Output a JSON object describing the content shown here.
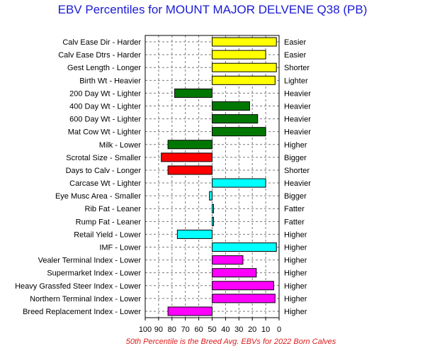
{
  "title": "EBV Percentiles for MOUNT MAJOR DELVENE Q38 (PB)",
  "footnote": "50th Percentile is the Breed Avg. EBVs for 2022 Born Calves",
  "chart_data": {
    "type": "bar",
    "orientation": "horizontal",
    "x_axis_reversed": true,
    "xlim": [
      100,
      0
    ],
    "baseline": 50,
    "grid": true,
    "x_ticks": [
      "100",
      "90",
      "80",
      "70",
      "60",
      "50",
      "40",
      "30",
      "20",
      "10",
      "0"
    ],
    "categories": [
      "Calv Ease Dir - Harder",
      "Calv Ease Dtrs - Harder",
      "Gest Length - Longer",
      "Birth Wt - Heavier",
      "200 Day Wt - Lighter",
      "400 Day Wt - Lighter",
      "600 Day Wt - Lighter",
      "Mat Cow Wt - Lighter",
      "Milk - Lower",
      "Scrotal Size - Smaller",
      "Days to Calv - Longer",
      "Carcase Wt - Lighter",
      "Eye Musc Area - Smaller",
      "Rib Fat - Leaner",
      "Rump Fat - Leaner",
      "Retail Yield - Lower",
      "IMF - Lower",
      "Vealer Terminal Index - Lower",
      "Supermarket Index - Lower",
      "Heavy Grassfed Steer Index - Lower",
      "Northern Terminal Index - Lower",
      "Breed Replacement Index - Lower"
    ],
    "right_labels": [
      "Easier",
      "Easier",
      "Shorter",
      "Lighter",
      "Heavier",
      "Heavier",
      "Heavier",
      "Heavier",
      "Higher",
      "Bigger",
      "Shorter",
      "Heavier",
      "Bigger",
      "Fatter",
      "Fatter",
      "Higher",
      "Higher",
      "Higher",
      "Higher",
      "Higher",
      "Higher",
      "Higher"
    ],
    "values": [
      2,
      10,
      2,
      3,
      78,
      22,
      16,
      10,
      83,
      88,
      83,
      10,
      52,
      49,
      49,
      76,
      2,
      27,
      17,
      4,
      3,
      83
    ],
    "colors": [
      "#ffff00",
      "#ffff00",
      "#ffff00",
      "#ffff00",
      "#007700",
      "#007700",
      "#007700",
      "#007700",
      "#007700",
      "#ff0000",
      "#ff0000",
      "#00ffff",
      "#00ffff",
      "#00ffff",
      "#00ffff",
      "#00ffff",
      "#00ffff",
      "#ff00ff",
      "#ff00ff",
      "#ff00ff",
      "#ff00ff",
      "#ff00ff"
    ]
  }
}
